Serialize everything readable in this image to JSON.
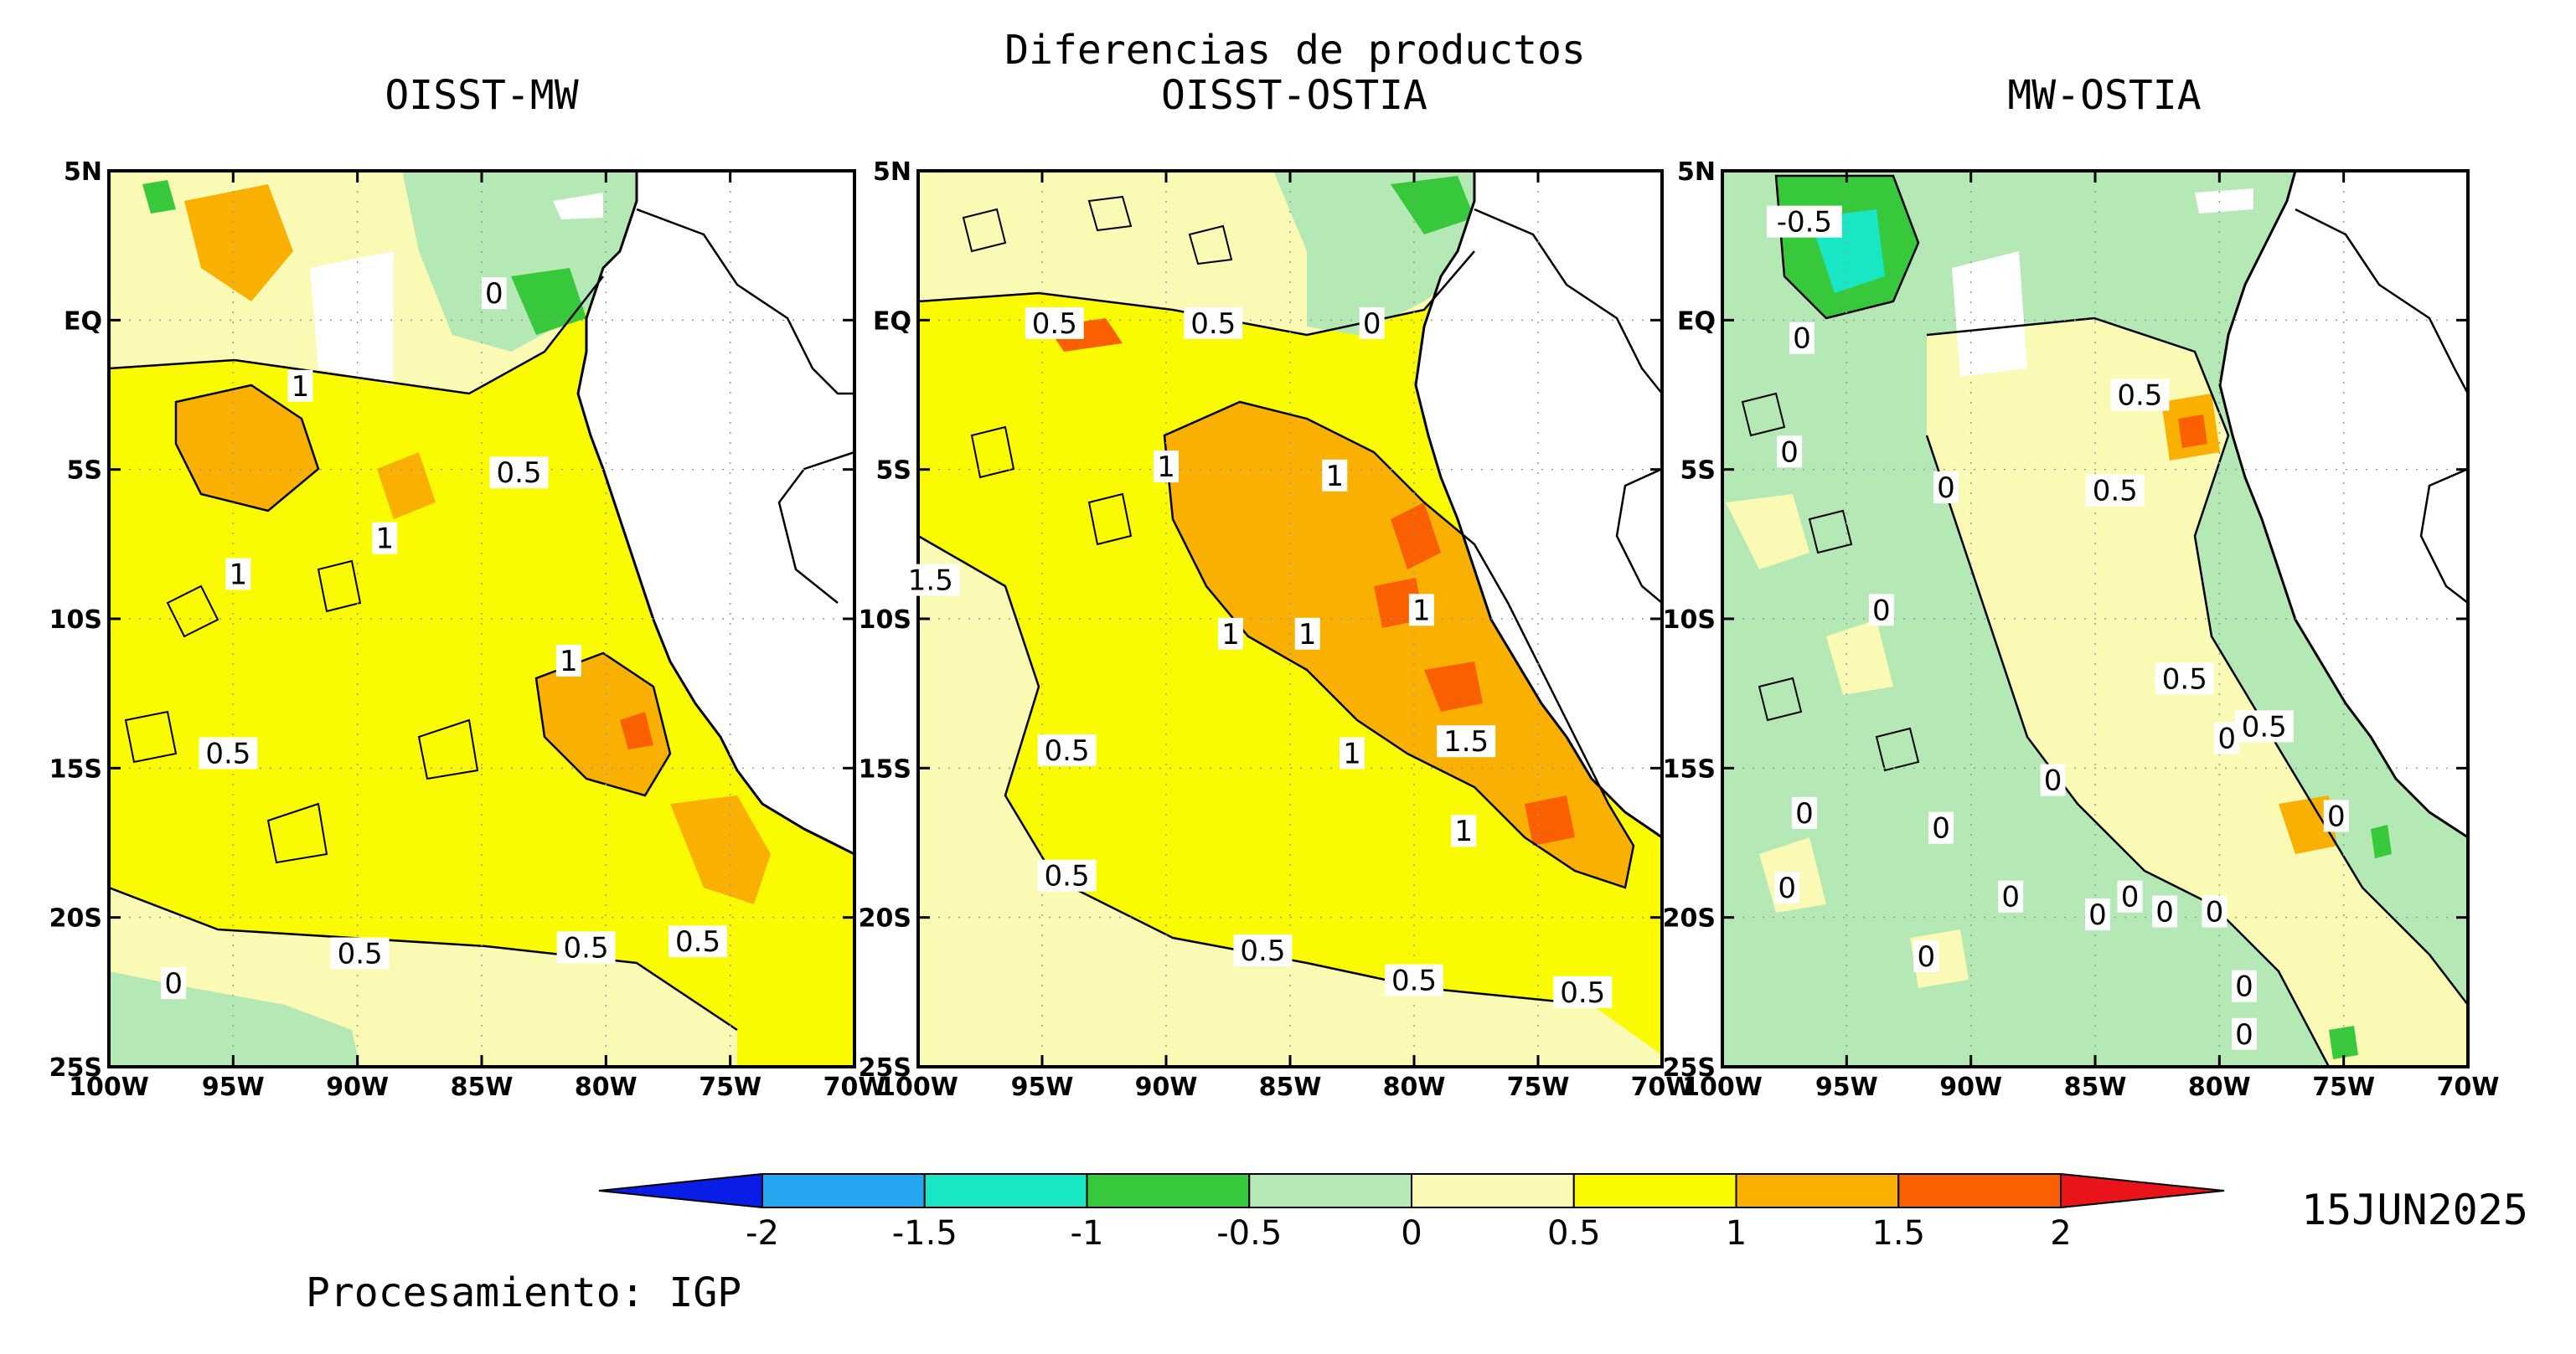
{
  "figure": {
    "main_title": "Diferencias de productos",
    "date_label": "15JUN2025",
    "credit": "Procesamiento: IGP"
  },
  "axes": {
    "lat_ticks": [
      "5N",
      "EQ",
      "5S",
      "10S",
      "15S",
      "20S",
      "25S"
    ],
    "lon_ticks": [
      "100W",
      "95W",
      "90W",
      "85W",
      "80W",
      "75W",
      "70W"
    ],
    "lat_range": [
      -25,
      5
    ],
    "lon_range": [
      -100,
      -70
    ]
  },
  "panels": [
    {
      "title": "OISST-MW",
      "labels": [
        {
          "text": "1",
          "lon": -92.3,
          "lat": -2.2
        },
        {
          "text": "0",
          "lon": -84.5,
          "lat": 0.9
        },
        {
          "text": "0.5",
          "lon": -83.5,
          "lat": -5.1
        },
        {
          "text": "1",
          "lon": -88.9,
          "lat": -7.3
        },
        {
          "text": "1",
          "lon": -94.8,
          "lat": -8.5
        },
        {
          "text": "1",
          "lon": -81.5,
          "lat": -11.4
        },
        {
          "text": "0.5",
          "lon": -95.2,
          "lat": -14.5
        },
        {
          "text": "0.5",
          "lon": -89.9,
          "lat": -21.2
        },
        {
          "text": "0.5",
          "lon": -80.8,
          "lat": -21.0
        },
        {
          "text": "0.5",
          "lon": -76.3,
          "lat": -20.8
        },
        {
          "text": "0",
          "lon": -97.4,
          "lat": -22.2
        }
      ]
    },
    {
      "title": "OISST-OSTIA",
      "labels": [
        {
          "text": "0.5",
          "lon": -94.5,
          "lat": -0.1
        },
        {
          "text": "0.5",
          "lon": -88.1,
          "lat": -0.1
        },
        {
          "text": "0",
          "lon": -81.7,
          "lat": -0.1
        },
        {
          "text": "1",
          "lon": -90.0,
          "lat": -4.9
        },
        {
          "text": "1",
          "lon": -83.2,
          "lat": -5.2
        },
        {
          "text": "1.5",
          "lon": -99.5,
          "lat": -8.7
        },
        {
          "text": "1",
          "lon": -79.7,
          "lat": -9.7
        },
        {
          "text": "1",
          "lon": -87.4,
          "lat": -10.5
        },
        {
          "text": "1",
          "lon": -84.3,
          "lat": -10.5
        },
        {
          "text": "1.5",
          "lon": -77.9,
          "lat": -14.1
        },
        {
          "text": "0.5",
          "lon": -94.0,
          "lat": -14.4
        },
        {
          "text": "1",
          "lon": -82.5,
          "lat": -14.5
        },
        {
          "text": "1",
          "lon": -78.0,
          "lat": -17.1
        },
        {
          "text": "0.5",
          "lon": -94.0,
          "lat": -18.6
        },
        {
          "text": "0.5",
          "lon": -86.1,
          "lat": -21.1
        },
        {
          "text": "0.5",
          "lon": -80.0,
          "lat": -22.1
        },
        {
          "text": "0.5",
          "lon": -73.2,
          "lat": -22.5
        }
      ]
    },
    {
      "title": "MW-OSTIA",
      "labels": [
        {
          "text": "-0.5",
          "lon": -96.7,
          "lat": 3.3
        },
        {
          "text": "0",
          "lon": -96.8,
          "lat": -0.6
        },
        {
          "text": "0.5",
          "lon": -83.2,
          "lat": -2.5
        },
        {
          "text": "0",
          "lon": -97.3,
          "lat": -4.4
        },
        {
          "text": "0",
          "lon": -91.0,
          "lat": -5.6
        },
        {
          "text": "0.5",
          "lon": -84.2,
          "lat": -5.7
        },
        {
          "text": "0",
          "lon": -93.6,
          "lat": -9.7
        },
        {
          "text": "0.5",
          "lon": -81.4,
          "lat": -12.0
        },
        {
          "text": "0.5",
          "lon": -78.2,
          "lat": -13.6
        },
        {
          "text": "0",
          "lon": -79.7,
          "lat": -14.0
        },
        {
          "text": "0",
          "lon": -86.7,
          "lat": -15.4
        },
        {
          "text": "0",
          "lon": -96.7,
          "lat": -16.5
        },
        {
          "text": "0",
          "lon": -91.2,
          "lat": -17.0
        },
        {
          "text": "0",
          "lon": -75.3,
          "lat": -16.6
        },
        {
          "text": "0",
          "lon": -97.4,
          "lat": -19.0
        },
        {
          "text": "0",
          "lon": -83.6,
          "lat": -19.3
        },
        {
          "text": "0",
          "lon": -84.9,
          "lat": -19.9
        },
        {
          "text": "0",
          "lon": -82.2,
          "lat": -19.8
        },
        {
          "text": "0",
          "lon": -80.2,
          "lat": -19.8
        },
        {
          "text": "0",
          "lon": -88.4,
          "lat": -19.3
        },
        {
          "text": "0",
          "lon": -91.8,
          "lat": -21.3
        },
        {
          "text": "0",
          "lon": -79.0,
          "lat": -22.3
        },
        {
          "text": "0",
          "lon": -79.0,
          "lat": -23.9
        }
      ]
    }
  ],
  "colorbar": {
    "tick_labels": [
      "-2",
      "-1.5",
      "-1",
      "-0.5",
      "0",
      "0.5",
      "1",
      "1.5",
      "2"
    ],
    "below_color": "#0a1de6",
    "above_color": "#e8141a",
    "colors": [
      "#24a6f0",
      "#18e6c4",
      "#37c93b",
      "#b4e8b4",
      "#fafab4",
      "#fafa00",
      "#fab000",
      "#fa5f00"
    ]
  },
  "colors": {
    "yellow_light": "#fafab4",
    "yellow": "#fafa00",
    "orange": "#fab000",
    "dark_orange": "#fa5f00",
    "red": "#e8141a",
    "light_green": "#b4e8b4",
    "green": "#37c93b",
    "teal": "#18e6c4",
    "land": "#ffffff"
  }
}
